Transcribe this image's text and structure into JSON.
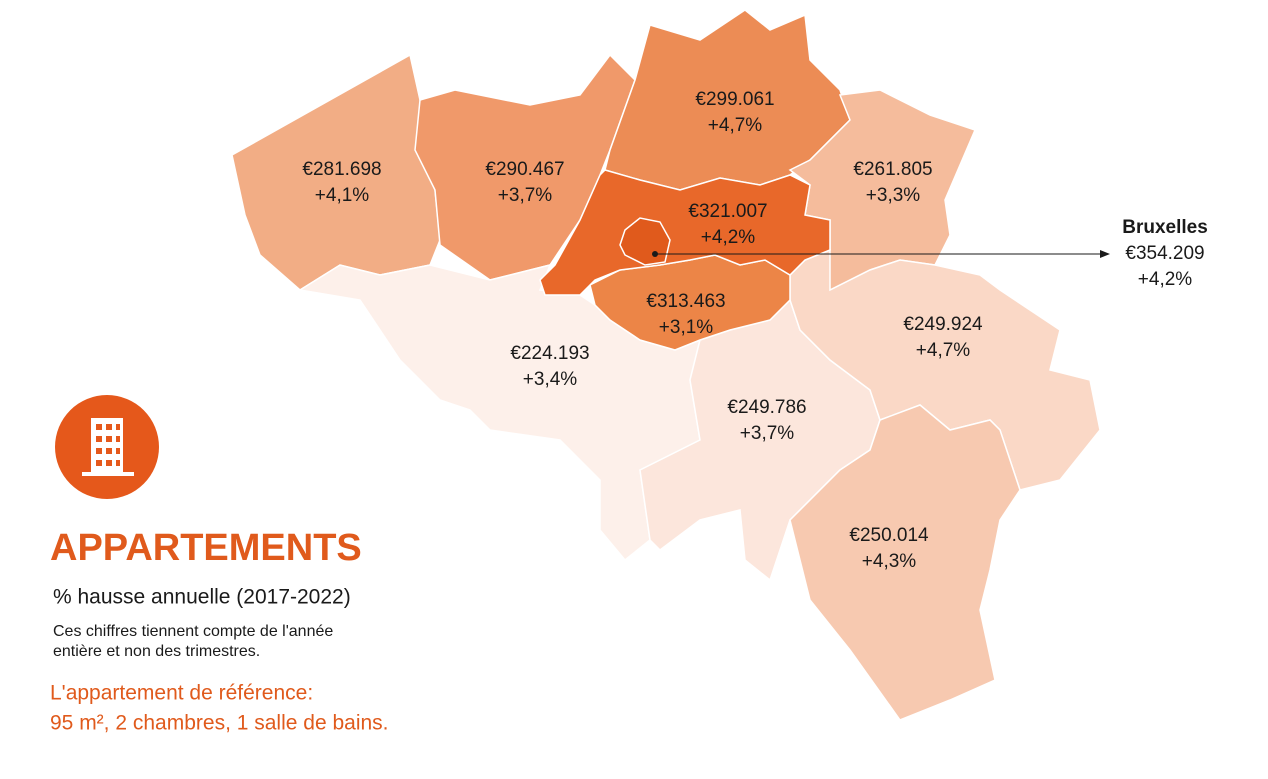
{
  "title": "APPARTEMENTS",
  "subtitle": "% hausse annuelle (2017-2022)",
  "note": [
    "Ces chiffres tiennent compte de l'année",
    "entière et non des trimestres."
  ],
  "reference": [
    "L'appartement de référence:",
    "95 m², 2 chambres, 1 salle de bains."
  ],
  "regions": [
    {
      "price": "€281.698",
      "change": "+4,1%"
    },
    {
      "price": "€290.467",
      "change": "+3,7%"
    },
    {
      "price": "€299.061",
      "change": "+4,7%"
    },
    {
      "price": "€261.805",
      "change": "+3,3%"
    },
    {
      "price": "€321.007",
      "change": "+4,2%"
    },
    {
      "price": "€313.463",
      "change": "+3,1%"
    },
    {
      "price": "€224.193",
      "change": "+3,4%"
    },
    {
      "price": "€249.786",
      "change": "+3,7%"
    },
    {
      "price": "€249.924",
      "change": "+4,7%"
    },
    {
      "price": "€250.014",
      "change": "+4,3%"
    }
  ],
  "brussels": {
    "name": "Bruxelles",
    "price": "€354.209",
    "change": "+4,2%"
  }
}
